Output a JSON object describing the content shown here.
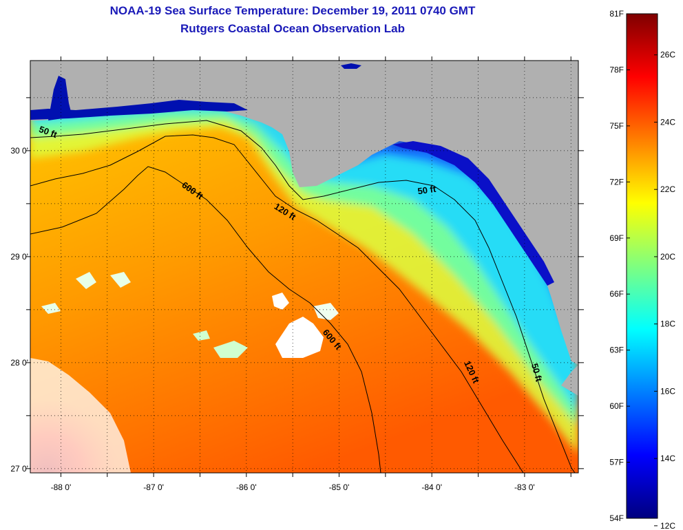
{
  "header": {
    "title": "NOAA-19 Sea Surface Temperature:  December 19, 2011 0740 GMT",
    "subtitle": "Rutgers Coastal Ocean Observation Lab"
  },
  "map": {
    "lon_range": [
      -88.33,
      -82.42
    ],
    "lat_range": [
      26.96,
      30.85
    ],
    "lon_ticks": [
      {
        "value": -88,
        "label": "-88 0'"
      },
      {
        "value": -87,
        "label": "-87 0'"
      },
      {
        "value": -86,
        "label": "-86 0'"
      },
      {
        "value": -85,
        "label": "-85 0'"
      },
      {
        "value": -84,
        "label": "-84 0'"
      },
      {
        "value": -83,
        "label": "-83 0'"
      }
    ],
    "lat_ticks": [
      {
        "value": 30,
        "label": "30 0'"
      },
      {
        "value": 29,
        "label": "29 0'"
      },
      {
        "value": 28,
        "label": "28 0'"
      },
      {
        "value": 27,
        "label": "27 0'"
      }
    ],
    "grid": "dotted",
    "land_color": "#b0b0b0",
    "cloud_color": "#ffffff",
    "contour_labels": [
      {
        "text": "50 ft",
        "lon": -88.15,
        "lat": 30.15,
        "rot": 20
      },
      {
        "text": "600 ft",
        "lon": -86.6,
        "lat": 29.6,
        "rot": 35
      },
      {
        "text": "120 ft",
        "lon": -85.6,
        "lat": 29.4,
        "rot": 32
      },
      {
        "text": "50 ft",
        "lon": -84.05,
        "lat": 29.6,
        "rot": -8
      },
      {
        "text": "600 ft",
        "lon": -85.1,
        "lat": 28.2,
        "rot": 50
      },
      {
        "text": "120 ft",
        "lon": -83.6,
        "lat": 27.9,
        "rot": 65
      },
      {
        "text": "50 ft",
        "lon": -82.9,
        "lat": 27.9,
        "rot": 75
      }
    ]
  },
  "colorbar": {
    "f_labels": [
      "81F",
      "78F",
      "75F",
      "72F",
      "69F",
      "66F",
      "63F",
      "60F",
      "57F",
      "54F"
    ],
    "c_labels": [
      "26C",
      "24C",
      "22C",
      "20C",
      "18C",
      "16C",
      "14C",
      "12C"
    ],
    "f_values": [
      81,
      78,
      75,
      72,
      69,
      66,
      63,
      60,
      57,
      54
    ],
    "c_values": [
      26,
      24,
      22,
      20,
      18,
      16,
      14,
      12
    ],
    "range_f": [
      54,
      81
    ],
    "colormap": [
      "#00007f",
      "#0000ff",
      "#007fff",
      "#00ffff",
      "#7fff7f",
      "#ffff00",
      "#ff7f00",
      "#ff0000",
      "#7f0000"
    ]
  }
}
